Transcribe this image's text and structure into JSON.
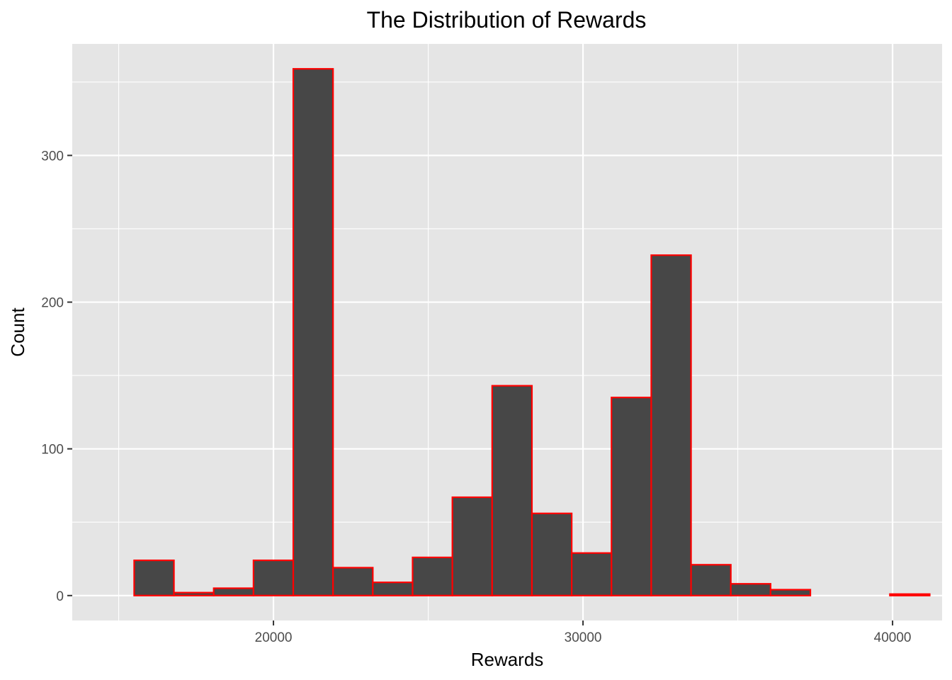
{
  "chart_data": {
    "type": "bar",
    "title": "The Distribution of Rewards",
    "xlabel": "Rewards",
    "ylabel": "Count",
    "xlim": [
      13500,
      41600
    ],
    "ylim": [
      -17,
      376
    ],
    "x_ticks": [
      20000,
      30000,
      40000
    ],
    "y_ticks": [
      0,
      100,
      200,
      300
    ],
    "grid": true,
    "bin_width": 1285,
    "bin_edges": [
      15500,
      16785,
      18070,
      19355,
      20640,
      21925,
      23210,
      24495,
      25780,
      27065,
      28350,
      29635,
      30920,
      32205,
      33490,
      34775,
      36060,
      37345,
      38630,
      39915,
      41200
    ],
    "values": [
      24,
      2,
      5,
      24,
      359,
      19,
      9,
      26,
      67,
      143,
      56,
      29,
      135,
      232,
      21,
      8,
      4,
      0,
      0,
      1
    ],
    "bar_fill": "#474747",
    "bar_outline": "#ff0000",
    "panel_background": "#e5e5e5",
    "grid_color": "#ffffff"
  }
}
